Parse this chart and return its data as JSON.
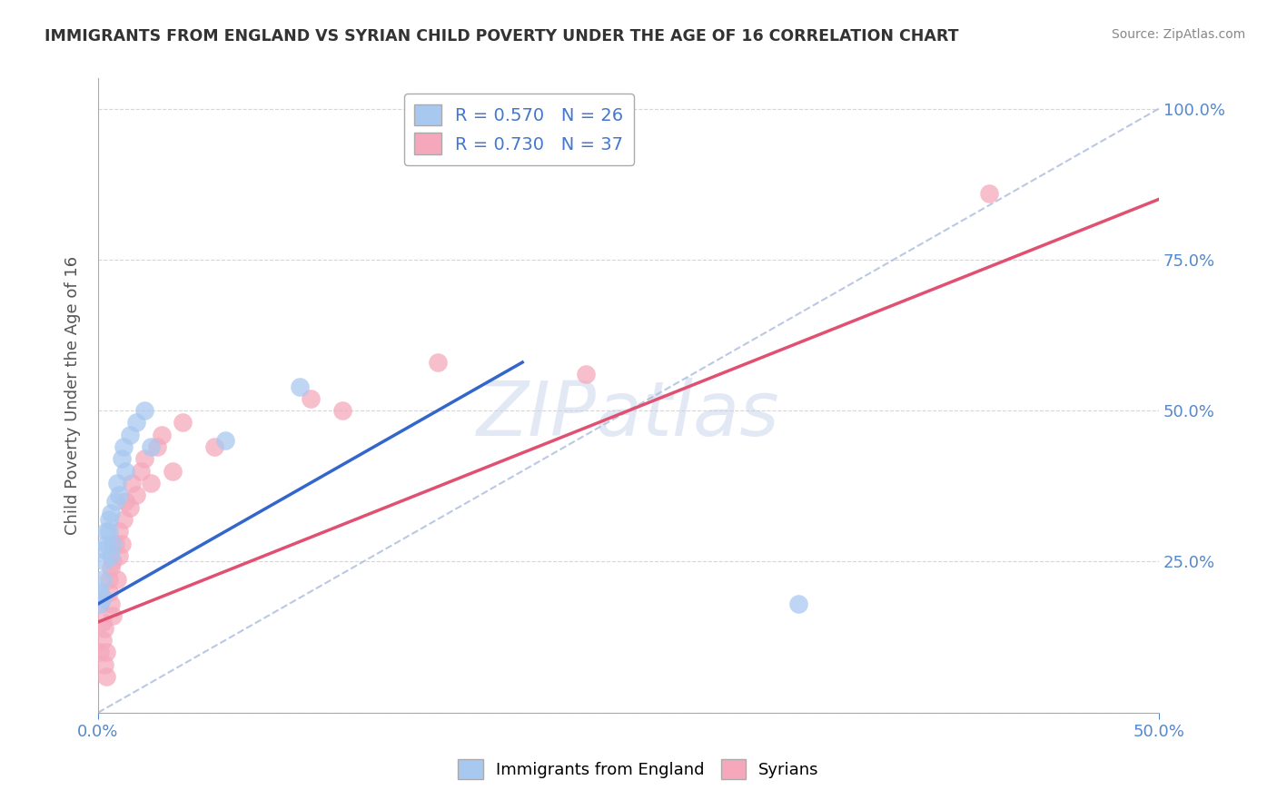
{
  "title": "IMMIGRANTS FROM ENGLAND VS SYRIAN CHILD POVERTY UNDER THE AGE OF 16 CORRELATION CHART",
  "source": "Source: ZipAtlas.com",
  "ylabel_label": "Child Poverty Under the Age of 16",
  "legend_blue": "R = 0.570   N = 26",
  "legend_pink": "R = 0.730   N = 37",
  "legend_label_blue": "Immigrants from England",
  "legend_label_pink": "Syrians",
  "blue_color": "#A8C8F0",
  "pink_color": "#F5A8BC",
  "trend_blue": "#3366CC",
  "trend_pink": "#E05070",
  "dash_color": "#AABBDD",
  "watermark": "ZIPatlas",
  "blue_scatter_x": [
    0.001,
    0.001,
    0.002,
    0.002,
    0.003,
    0.003,
    0.004,
    0.004,
    0.005,
    0.005,
    0.006,
    0.006,
    0.007,
    0.008,
    0.009,
    0.01,
    0.011,
    0.012,
    0.013,
    0.015,
    0.018,
    0.022,
    0.025,
    0.06,
    0.095,
    0.33
  ],
  "blue_scatter_y": [
    0.2,
    0.18,
    0.22,
    0.19,
    0.27,
    0.25,
    0.3,
    0.28,
    0.32,
    0.3,
    0.33,
    0.26,
    0.28,
    0.35,
    0.38,
    0.36,
    0.42,
    0.44,
    0.4,
    0.46,
    0.48,
    0.5,
    0.44,
    0.45,
    0.54,
    0.18
  ],
  "pink_scatter_x": [
    0.001,
    0.001,
    0.002,
    0.002,
    0.003,
    0.003,
    0.004,
    0.004,
    0.005,
    0.005,
    0.006,
    0.006,
    0.007,
    0.007,
    0.008,
    0.009,
    0.01,
    0.01,
    0.011,
    0.012,
    0.013,
    0.015,
    0.016,
    0.018,
    0.02,
    0.022,
    0.025,
    0.028,
    0.03,
    0.035,
    0.04,
    0.055,
    0.1,
    0.115,
    0.16,
    0.23,
    0.42
  ],
  "pink_scatter_y": [
    0.18,
    0.1,
    0.12,
    0.15,
    0.08,
    0.14,
    0.06,
    0.1,
    0.2,
    0.22,
    0.24,
    0.18,
    0.16,
    0.25,
    0.28,
    0.22,
    0.26,
    0.3,
    0.28,
    0.32,
    0.35,
    0.34,
    0.38,
    0.36,
    0.4,
    0.42,
    0.38,
    0.44,
    0.46,
    0.4,
    0.48,
    0.44,
    0.52,
    0.5,
    0.58,
    0.56,
    0.86
  ],
  "blue_trend_x0": 0.0,
  "blue_trend_y0": 0.18,
  "blue_trend_x1": 0.2,
  "blue_trend_y1": 0.58,
  "pink_trend_x0": 0.0,
  "pink_trend_y0": 0.15,
  "pink_trend_x1": 0.5,
  "pink_trend_y1": 0.85,
  "xlim": [
    0.0,
    0.5
  ],
  "ylim": [
    0.0,
    1.05
  ],
  "background_color": "#FFFFFF"
}
